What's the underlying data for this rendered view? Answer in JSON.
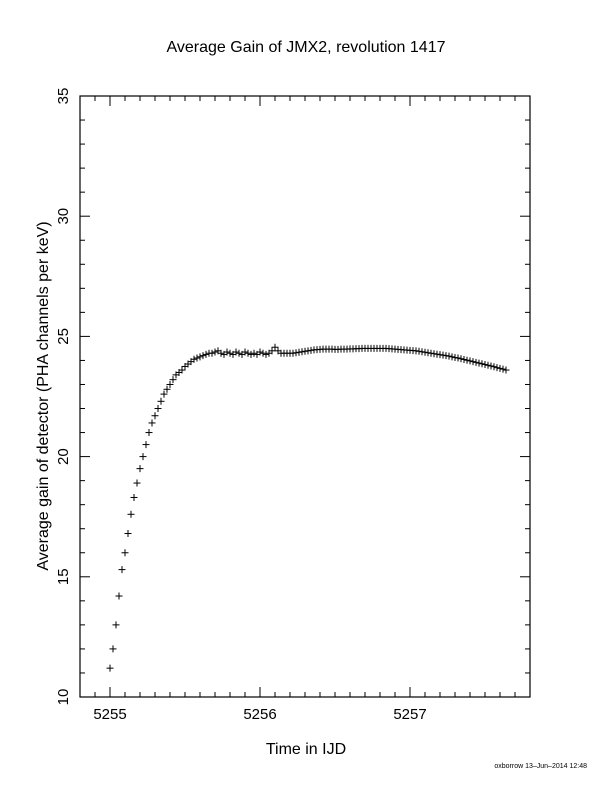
{
  "chart_data": {
    "type": "scatter",
    "title": "Average Gain of JMX2, revolution 1417",
    "xlabel": "Time in IJD",
    "ylabel": "Average gain of detector (PHA channels per keV)",
    "xlim": [
      5254.8,
      5257.8
    ],
    "ylim": [
      10,
      35
    ],
    "xticks": [
      5255,
      5256,
      5257
    ],
    "yticks": [
      10,
      15,
      20,
      25,
      30,
      35
    ],
    "marker": "plus",
    "grid": false,
    "series": [
      {
        "points": [
          [
            5255.0,
            11.2
          ],
          [
            5255.02,
            12.0
          ],
          [
            5255.04,
            13.0
          ],
          [
            5255.06,
            14.2
          ],
          [
            5255.08,
            15.3
          ],
          [
            5255.1,
            16.0
          ],
          [
            5255.12,
            16.8
          ],
          [
            5255.14,
            17.6
          ],
          [
            5255.16,
            18.3
          ],
          [
            5255.18,
            18.9
          ],
          [
            5255.2,
            19.5
          ],
          [
            5255.22,
            20.0
          ],
          [
            5255.24,
            20.5
          ],
          [
            5255.26,
            21.0
          ],
          [
            5255.28,
            21.4
          ],
          [
            5255.3,
            21.7
          ],
          [
            5255.32,
            22.0
          ],
          [
            5255.34,
            22.3
          ],
          [
            5255.36,
            22.6
          ],
          [
            5255.38,
            22.8
          ],
          [
            5255.4,
            23.0
          ],
          [
            5255.42,
            23.2
          ],
          [
            5255.44,
            23.4
          ],
          [
            5255.46,
            23.5
          ],
          [
            5255.48,
            23.6
          ],
          [
            5255.5,
            23.75
          ],
          [
            5255.52,
            23.85
          ],
          [
            5255.54,
            23.95
          ],
          [
            5255.56,
            24.05
          ],
          [
            5255.58,
            24.1
          ],
          [
            5255.6,
            24.15
          ],
          [
            5255.62,
            24.2
          ],
          [
            5255.64,
            24.25
          ],
          [
            5255.66,
            24.3
          ],
          [
            5255.68,
            24.3
          ],
          [
            5255.7,
            24.35
          ],
          [
            5255.72,
            24.4
          ],
          [
            5255.74,
            24.3
          ],
          [
            5255.76,
            24.25
          ],
          [
            5255.78,
            24.35
          ],
          [
            5255.8,
            24.3
          ],
          [
            5255.82,
            24.25
          ],
          [
            5255.84,
            24.35
          ],
          [
            5255.86,
            24.3
          ],
          [
            5255.88,
            24.25
          ],
          [
            5255.9,
            24.35
          ],
          [
            5255.92,
            24.3
          ],
          [
            5255.94,
            24.25
          ],
          [
            5255.96,
            24.3
          ],
          [
            5255.98,
            24.25
          ],
          [
            5256.0,
            24.35
          ],
          [
            5256.02,
            24.3
          ],
          [
            5256.04,
            24.25
          ],
          [
            5256.06,
            24.3
          ],
          [
            5256.08,
            24.4
          ],
          [
            5256.1,
            24.55
          ],
          [
            5256.12,
            24.4
          ],
          [
            5256.14,
            24.3
          ],
          [
            5256.16,
            24.3
          ],
          [
            5256.18,
            24.3
          ],
          [
            5256.2,
            24.3
          ],
          [
            5256.22,
            24.3
          ],
          [
            5256.24,
            24.32
          ],
          [
            5256.26,
            24.34
          ],
          [
            5256.28,
            24.36
          ],
          [
            5256.3,
            24.38
          ],
          [
            5256.32,
            24.4
          ],
          [
            5256.34,
            24.42
          ],
          [
            5256.36,
            24.44
          ],
          [
            5256.38,
            24.45
          ],
          [
            5256.4,
            24.46
          ],
          [
            5256.42,
            24.47
          ],
          [
            5256.44,
            24.47
          ],
          [
            5256.46,
            24.47
          ],
          [
            5256.48,
            24.47
          ],
          [
            5256.5,
            24.46
          ],
          [
            5256.52,
            24.46
          ],
          [
            5256.54,
            24.47
          ],
          [
            5256.56,
            24.47
          ],
          [
            5256.58,
            24.47
          ],
          [
            5256.6,
            24.48
          ],
          [
            5256.62,
            24.48
          ],
          [
            5256.64,
            24.49
          ],
          [
            5256.66,
            24.49
          ],
          [
            5256.68,
            24.5
          ],
          [
            5256.7,
            24.5
          ],
          [
            5256.72,
            24.5
          ],
          [
            5256.74,
            24.5
          ],
          [
            5256.76,
            24.5
          ],
          [
            5256.78,
            24.5
          ],
          [
            5256.8,
            24.5
          ],
          [
            5256.82,
            24.5
          ],
          [
            5256.84,
            24.5
          ],
          [
            5256.86,
            24.49
          ],
          [
            5256.88,
            24.48
          ],
          [
            5256.9,
            24.47
          ],
          [
            5256.92,
            24.46
          ],
          [
            5256.94,
            24.45
          ],
          [
            5256.96,
            24.44
          ],
          [
            5256.98,
            24.43
          ],
          [
            5257.0,
            24.42
          ],
          [
            5257.02,
            24.41
          ],
          [
            5257.04,
            24.4
          ],
          [
            5257.06,
            24.38
          ],
          [
            5257.08,
            24.36
          ],
          [
            5257.1,
            24.34
          ],
          [
            5257.12,
            24.32
          ],
          [
            5257.14,
            24.3
          ],
          [
            5257.16,
            24.28
          ],
          [
            5257.18,
            24.26
          ],
          [
            5257.2,
            24.24
          ],
          [
            5257.22,
            24.22
          ],
          [
            5257.24,
            24.2
          ],
          [
            5257.26,
            24.18
          ],
          [
            5257.28,
            24.15
          ],
          [
            5257.3,
            24.12
          ],
          [
            5257.32,
            24.1
          ],
          [
            5257.34,
            24.07
          ],
          [
            5257.36,
            24.04
          ],
          [
            5257.38,
            24.01
          ],
          [
            5257.4,
            23.98
          ],
          [
            5257.42,
            23.95
          ],
          [
            5257.44,
            23.92
          ],
          [
            5257.46,
            23.89
          ],
          [
            5257.48,
            23.86
          ],
          [
            5257.5,
            23.83
          ],
          [
            5257.52,
            23.8
          ],
          [
            5257.54,
            23.77
          ],
          [
            5257.56,
            23.74
          ],
          [
            5257.58,
            23.7
          ],
          [
            5257.6,
            23.67
          ],
          [
            5257.62,
            23.64
          ],
          [
            5257.64,
            23.6
          ]
        ]
      }
    ]
  },
  "footer": "oxborrow 13–Jun–2014 12:48",
  "colors": {
    "marker": "#000000",
    "axes": "#000000",
    "background": "#ffffff"
  }
}
